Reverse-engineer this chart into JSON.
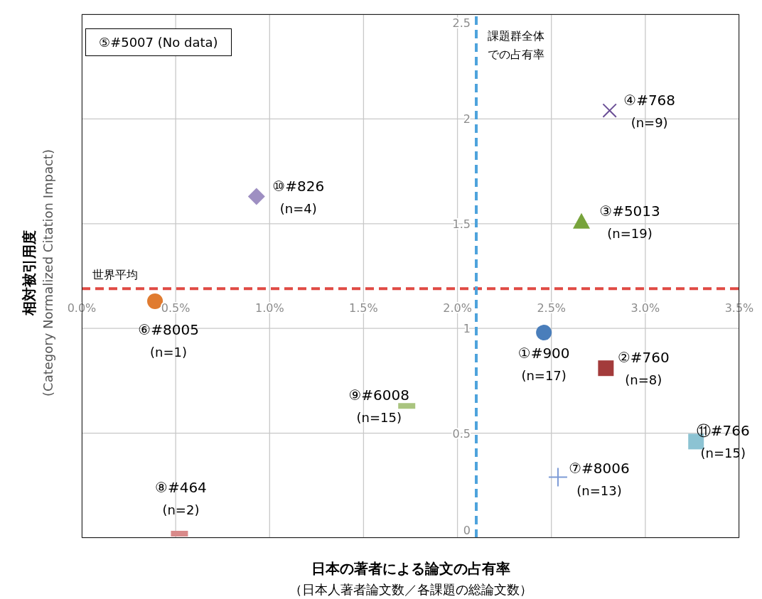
{
  "chart_data": {
    "type": "scatter",
    "xlabel": "日本の著者による論文の占有率（日本人著者論文数／各課題の総論文数）",
    "ylabel": "相対被引用度\n(Category Normalized Citation Impact)",
    "xlim": [
      0,
      3.5
    ],
    "xticks": [
      {
        "value": 0,
        "label": "0.0%"
      },
      {
        "value": 0.5,
        "label": "0.5%"
      },
      {
        "value": 1,
        "label": "1.0%"
      },
      {
        "value": 1.5,
        "label": "1.5%"
      },
      {
        "value": 2,
        "label": "2.0%"
      },
      {
        "value": 2.5,
        "label": "2.5%"
      },
      {
        "value": 3,
        "label": "3.0%"
      },
      {
        "value": 3.5,
        "label": "3.5%"
      }
    ],
    "ylim": [
      0,
      2.5
    ],
    "yticks": [
      0,
      0.5,
      1,
      1.5,
      2,
      2.5
    ],
    "grid": true,
    "ref_lines": [
      {
        "axis": "y",
        "value": 1.19,
        "label": "世界平均",
        "color": "#e04a44",
        "line_style": "dashed"
      },
      {
        "axis": "x",
        "value": 2.1,
        "label": "課題群全体での占有率",
        "color": "#4ea3dc",
        "line_style": "dashed"
      }
    ],
    "annotations": [
      "⑤#5007 (No data)"
    ],
    "series": [
      {
        "name": "①#900\n(n=17)",
        "color": "#4a7ebb",
        "marker": "circle",
        "x": [
          2.46
        ],
        "values": [
          0.98
        ]
      },
      {
        "name": "②#760\n(n=8)",
        "color": "#a33b3b",
        "marker": "square",
        "x": [
          2.79
        ],
        "values": [
          0.81
        ]
      },
      {
        "name": "③#5013\n(n=19)",
        "color": "#77a33b",
        "marker": "triangle",
        "x": [
          2.66
        ],
        "values": [
          1.51
        ]
      },
      {
        "name": "④#768\n(n=9)",
        "color": "#6a4f96",
        "marker": "cross",
        "x": [
          2.81
        ],
        "values": [
          2.04
        ]
      },
      {
        "name": "⑥#8005\n(n=1)",
        "color": "#e07b30",
        "marker": "circle",
        "x": [
          0.39
        ],
        "values": [
          1.13
        ]
      },
      {
        "name": "⑦#8006\n(n=13)",
        "color": "#7d9bd6",
        "marker": "cross",
        "x": [
          2.535
        ],
        "values": [
          0.29
        ]
      },
      {
        "name": "⑧#464\n(n=2)",
        "color": "#d98a8a",
        "marker": "square",
        "x": [
          0.52
        ],
        "values": [
          0.02
        ]
      },
      {
        "name": "⑨#6008\n(n=15)",
        "color": "#a9c47f",
        "marker": "square",
        "x": [
          1.73
        ],
        "values": [
          0.63
        ]
      },
      {
        "name": "⑩#826\n(n=4)",
        "color": "#9e8fc2",
        "marker": "diamond",
        "x": [
          0.93
        ],
        "values": [
          1.63
        ]
      },
      {
        "name": "⑪#766\n(n=15)",
        "color": "#8cc3d3",
        "marker": "square",
        "x": [
          3.27
        ],
        "values": [
          0.46
        ]
      }
    ]
  }
}
